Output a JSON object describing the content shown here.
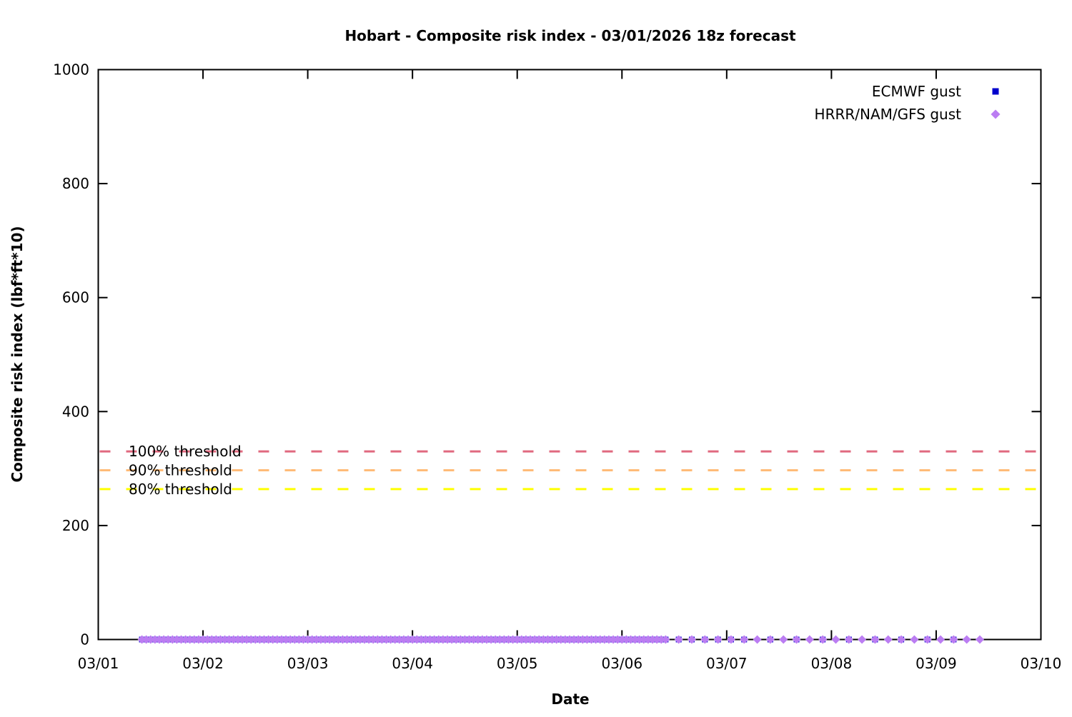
{
  "page": {
    "background": "#ffffff"
  },
  "chart_data": {
    "type": "scatter",
    "title": "Hobart - Composite risk index - 03/01/2026 18z forecast",
    "xlabel": "Date",
    "ylabel": "Composite risk index (lbf*ft*10)",
    "grid": false,
    "legend_position": "top-right-inside",
    "x_axis": {
      "tick_labels": [
        "03/01",
        "03/02",
        "03/03",
        "03/04",
        "03/05",
        "03/06",
        "03/07",
        "03/08",
        "03/09",
        "03/10"
      ],
      "tick_days": [
        0,
        1,
        2,
        3,
        4,
        5,
        6,
        7,
        8,
        9
      ],
      "range_days": [
        0,
        9
      ],
      "hours_origin_label": "03/01"
    },
    "y_axis": {
      "ticks": [
        0,
        200,
        400,
        600,
        800,
        1000
      ],
      "range": [
        0,
        1000
      ]
    },
    "thresholds": [
      {
        "label": "100% threshold",
        "value": 330,
        "color": "#e0697f"
      },
      {
        "label": "90% threshold",
        "value": 297,
        "color": "#ffbb78"
      },
      {
        "label": "80% threshold",
        "value": 264,
        "color": "#ffff00"
      }
    ],
    "series": [
      {
        "name": "ECMWF gust",
        "marker": "square",
        "marker_icon": "blue-square-marker-icon",
        "color": "#0000cc",
        "y_value": 0,
        "time_segments_hours": [
          {
            "start": 10,
            "end": 130,
            "step": 1
          },
          {
            "start": 133,
            "end": 148,
            "step": 3
          },
          {
            "start": 154,
            "end": 196,
            "step": 6
          }
        ]
      },
      {
        "name": "HRRR/NAM/GFS gust",
        "marker": "diamond",
        "marker_icon": "purple-diamond-marker-icon",
        "color": "#bb7df2",
        "y_value": 0,
        "time_segments_hours": [
          {
            "start": 10,
            "end": 130,
            "step": 1
          },
          {
            "start": 133,
            "end": 202,
            "step": 3
          }
        ]
      }
    ]
  }
}
